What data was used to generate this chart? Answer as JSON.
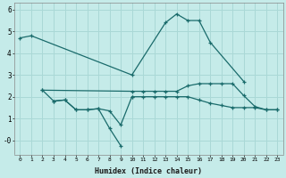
{
  "xlabel": "Humidex (Indice chaleur)",
  "bg_color": "#c5ebe9",
  "grid_color": "#aad8d6",
  "line_color": "#1a6b6b",
  "xlim": [
    -0.5,
    23.5
  ],
  "ylim": [
    -0.65,
    6.3
  ],
  "yticks": [
    0,
    1,
    2,
    3,
    4,
    5,
    6
  ],
  "ytick_labels": [
    "-0",
    "1",
    "2",
    "3",
    "4",
    "5",
    "6"
  ],
  "xticks": [
    0,
    1,
    2,
    3,
    4,
    5,
    6,
    7,
    8,
    9,
    10,
    11,
    12,
    13,
    14,
    15,
    16,
    17,
    18,
    19,
    20,
    21,
    22,
    23
  ],
  "series": [
    {
      "x": [
        0,
        1,
        10,
        13,
        14,
        15,
        16,
        17,
        20
      ],
      "y": [
        4.7,
        4.8,
        3.0,
        5.4,
        5.8,
        5.5,
        5.5,
        4.5,
        2.7
      ]
    },
    {
      "x": [
        2,
        3,
        4,
        5,
        6,
        7,
        8,
        9
      ],
      "y": [
        2.3,
        1.8,
        1.85,
        1.4,
        1.4,
        1.45,
        0.55,
        -0.25
      ]
    },
    {
      "x": [
        2,
        10,
        11,
        12,
        13,
        14,
        15,
        16,
        17,
        18,
        19,
        20,
        21,
        22,
        23
      ],
      "y": [
        2.3,
        2.25,
        2.25,
        2.25,
        2.25,
        2.25,
        2.5,
        2.6,
        2.6,
        2.6,
        2.6,
        2.05,
        1.55,
        1.4,
        1.4
      ]
    },
    {
      "x": [
        10,
        11,
        12,
        13,
        14,
        15,
        16,
        17,
        18,
        19,
        20,
        21,
        22,
        23
      ],
      "y": [
        2.0,
        2.0,
        2.0,
        2.0,
        2.0,
        2.0,
        1.85,
        1.7,
        1.6,
        1.5,
        1.5,
        1.5,
        1.4,
        1.4
      ]
    },
    {
      "x": [
        3,
        4,
        5,
        6,
        7,
        8,
        9,
        10
      ],
      "y": [
        1.8,
        1.85,
        1.4,
        1.4,
        1.45,
        1.35,
        0.7,
        2.0
      ]
    }
  ]
}
